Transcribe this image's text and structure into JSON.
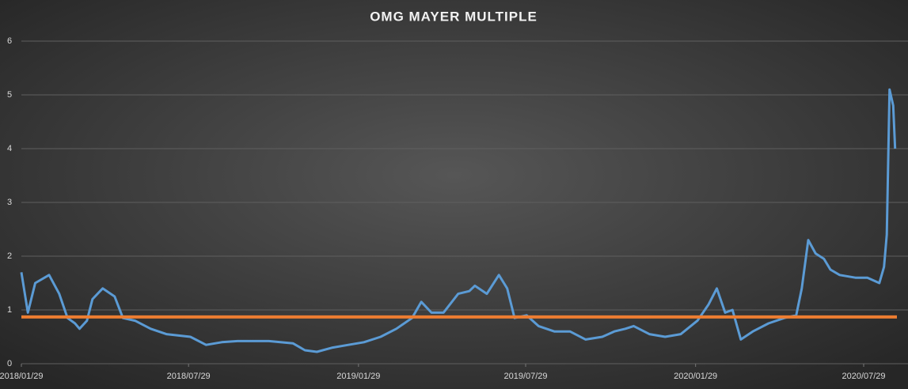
{
  "chart_data": {
    "type": "line",
    "title": "OMG MAYER MULTIPLE",
    "x": [
      "2018/01/29",
      "2018/02/05",
      "2018/02/13",
      "2018/02/28",
      "2018/03/11",
      "2018/03/20",
      "2018/03/28",
      "2018/04/02",
      "2018/04/10",
      "2018/04/16",
      "2018/04/27",
      "2018/05/10",
      "2018/05/19",
      "2018/06/01",
      "2018/06/18",
      "2018/07/05",
      "2018/07/31",
      "2018/08/17",
      "2018/09/03",
      "2018/09/20",
      "2018/10/24",
      "2018/11/19",
      "2018/12/02",
      "2018/12/15",
      "2019/01/01",
      "2019/01/18",
      "2019/02/04",
      "2019/02/22",
      "2019/03/11",
      "2019/03/28",
      "2019/04/07",
      "2019/04/18",
      "2019/05/01",
      "2019/05/17",
      "2019/05/29",
      "2019/06/04",
      "2019/06/17",
      "2019/06/30",
      "2019/07/09",
      "2019/07/17",
      "2019/07/30",
      "2019/08/12",
      "2019/08/29",
      "2019/09/15",
      "2019/10/02",
      "2019/10/20",
      "2019/11/02",
      "2019/11/14",
      "2019/11/23",
      "2019/12/10",
      "2019/12/27",
      "2020/01/13",
      "2020/01/31",
      "2020/02/12",
      "2020/02/21",
      "2020/03/01",
      "2020/03/09",
      "2020/03/18",
      "2020/03/31",
      "2020/04/17",
      "2020/05/04",
      "2020/05/17",
      "2020/05/23",
      "2020/05/30",
      "2020/06/07",
      "2020/06/16",
      "2020/06/23",
      "2020/07/03",
      "2020/07/20",
      "2020/08/02",
      "2020/08/15",
      "2020/08/20",
      "2020/08/23",
      "2020/08/26",
      "2020/08/30",
      "2020/09/01"
    ],
    "values": [
      1.7,
      0.95,
      1.5,
      1.65,
      1.3,
      0.85,
      0.75,
      0.65,
      0.8,
      1.2,
      1.4,
      1.25,
      0.85,
      0.8,
      0.65,
      0.55,
      0.5,
      0.35,
      0.4,
      0.42,
      0.42,
      0.38,
      0.25,
      0.22,
      0.3,
      0.35,
      0.4,
      0.5,
      0.65,
      0.85,
      1.15,
      0.95,
      0.95,
      1.3,
      1.35,
      1.45,
      1.3,
      1.65,
      1.4,
      0.85,
      0.9,
      0.7,
      0.6,
      0.6,
      0.45,
      0.5,
      0.6,
      0.65,
      0.7,
      0.55,
      0.5,
      0.55,
      0.8,
      1.1,
      1.4,
      0.95,
      1.0,
      0.45,
      0.6,
      0.75,
      0.85,
      0.9,
      1.4,
      2.3,
      2.05,
      1.95,
      1.75,
      1.65,
      1.6,
      1.6,
      1.5,
      1.8,
      2.4,
      5.1,
      4.8,
      4.0
    ],
    "color": "#5b9bd5",
    "hline": {
      "value": 0.87,
      "color": "#ed7d31"
    },
    "xlim": [
      "2018/01/29",
      "2020/09/03"
    ],
    "xticks": [
      "2018/01/29",
      "2018/07/29",
      "2019/01/29",
      "2019/07/29",
      "2020/01/29",
      "2020/07/29"
    ],
    "ylim": [
      0,
      6
    ],
    "yticks": [
      0,
      1,
      2,
      3,
      4,
      5,
      6
    ],
    "grid": true
  }
}
